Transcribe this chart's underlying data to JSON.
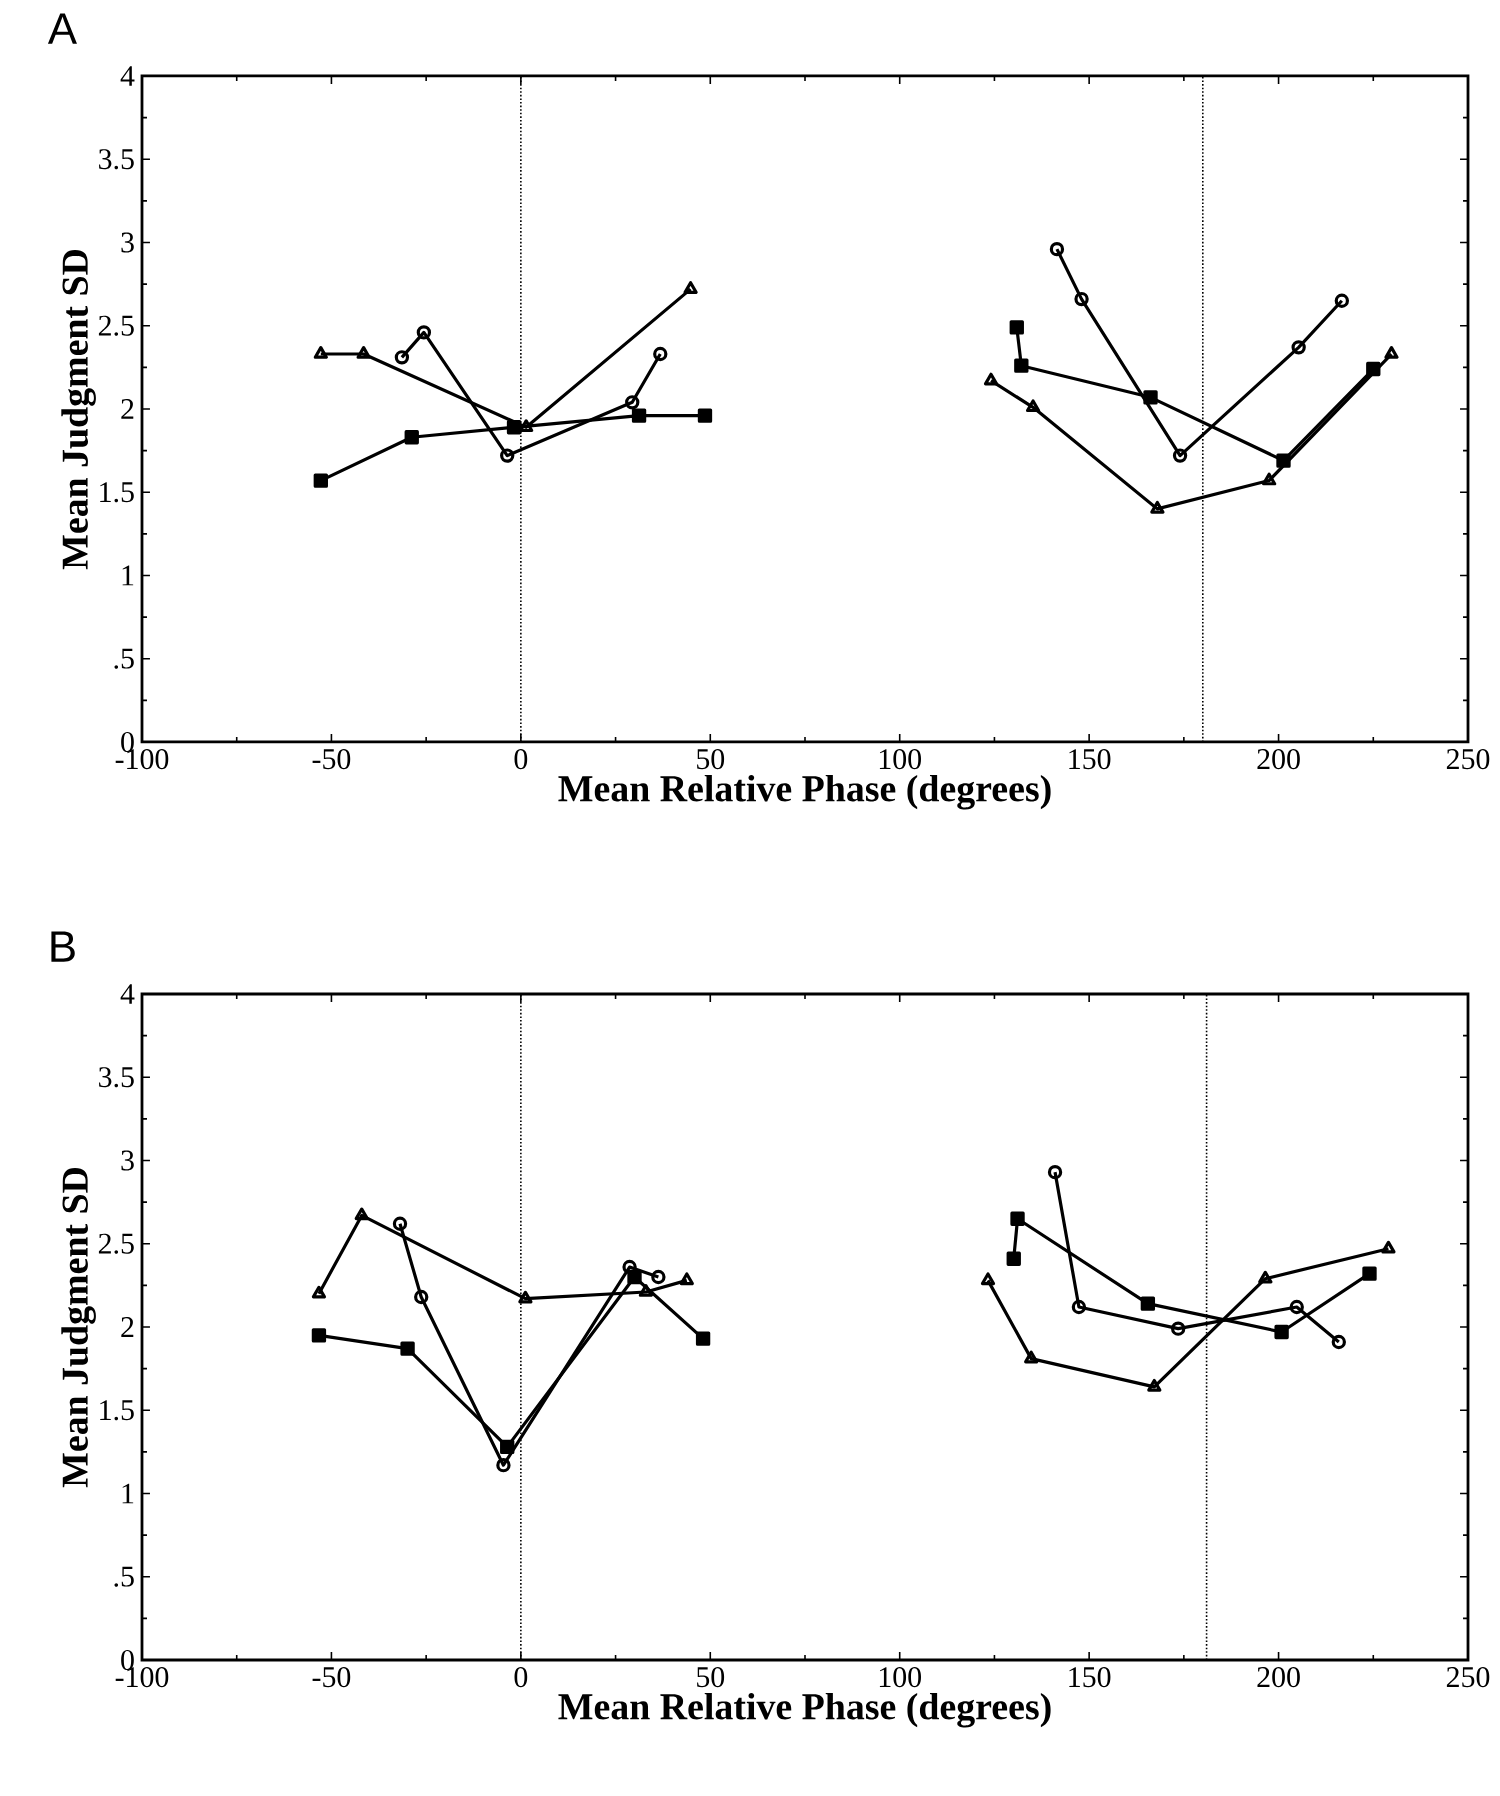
{
  "chart_data": [
    {
      "type": "line",
      "title": "A",
      "xlabel": "Mean  Relative  Phase  (degrees)",
      "ylabel": "Mean  Judgment  SD",
      "xlim": [
        -100,
        250
      ],
      "xticks": [
        -100,
        -50,
        0,
        50,
        100,
        150,
        200,
        250
      ],
      "ylim": [
        0,
        4
      ],
      "yticks": [
        0,
        {
          "value": 0.5,
          "label": ".5"
        },
        1,
        {
          "value": 1.5,
          "label": "1.5"
        },
        2,
        {
          "value": 2.5,
          "label": "2.5"
        },
        3,
        {
          "value": 3.5,
          "label": "3.5"
        },
        4
      ],
      "line_style": "solid",
      "ref_lines": [
        {
          "axis": "x",
          "value": 0,
          "color": "#000000",
          "line_style": "dotted"
        },
        {
          "axis": "x",
          "value": 180,
          "color": "#000000",
          "line_style": "dotted"
        }
      ],
      "series": [
        {
          "color": "#000000",
          "marker": "square",
          "x": [
            -52.8,
            -28.8,
            -1.8,
            31.2,
            48.6
          ],
          "values": [
            1.57,
            1.83,
            1.89,
            1.96,
            1.96
          ]
        },
        {
          "color": "#000000",
          "marker": "circle",
          "x": [
            -31.4,
            -25.6,
            -3.6,
            29.4,
            36.8
          ],
          "values": [
            2.31,
            2.46,
            1.72,
            2.04,
            2.33
          ]
        },
        {
          "color": "#000000",
          "marker": "triangle",
          "x": [
            -52.8,
            -41.5,
            1.4,
            44.8
          ],
          "values": [
            2.33,
            2.33,
            1.89,
            2.72
          ]
        },
        {
          "color": "#000000",
          "marker": "square",
          "x": [
            130.9,
            132.1,
            166.2,
            201.3,
            225.0
          ],
          "values": [
            2.49,
            2.26,
            2.07,
            1.69,
            2.24
          ]
        },
        {
          "color": "#000000",
          "marker": "circle",
          "x": [
            141.5,
            148.0,
            174.0,
            205.3,
            216.7
          ],
          "values": [
            2.96,
            2.66,
            1.72,
            2.37,
            2.65
          ]
        },
        {
          "color": "#000000",
          "marker": "triangle",
          "x": [
            124.1,
            135.2,
            168.0,
            197.5,
            229.8
          ],
          "values": [
            2.17,
            2.01,
            1.4,
            1.57,
            2.33
          ]
        }
      ]
    },
    {
      "type": "line",
      "title": "B",
      "xlabel": "Mean  Relative  Phase  (degrees)",
      "ylabel": "Mean  Judgment  SD",
      "xlim": [
        -100,
        250
      ],
      "xticks": [
        -100,
        -50,
        0,
        50,
        100,
        150,
        200,
        250
      ],
      "ylim": [
        0,
        4
      ],
      "yticks": [
        0,
        {
          "value": 0.5,
          "label": ".5"
        },
        1,
        {
          "value": 1.5,
          "label": "1.5"
        },
        2,
        {
          "value": 2.5,
          "label": "2.5"
        },
        3,
        {
          "value": 3.5,
          "label": "3.5"
        },
        4
      ],
      "line_style": "solid",
      "ref_lines": [
        {
          "axis": "x",
          "value": 0,
          "color": "#000000",
          "line_style": "dotted"
        },
        {
          "axis": "x",
          "value": 181,
          "color": "#000000",
          "line_style": "dotted"
        }
      ],
      "series": [
        {
          "color": "#000000",
          "marker": "square",
          "x": [
            -53.3,
            -29.9,
            -3.6,
            30.0,
            48.1
          ],
          "values": [
            1.95,
            1.87,
            1.28,
            2.3,
            1.93
          ]
        },
        {
          "color": "#000000",
          "marker": "circle",
          "x": [
            -31.9,
            -26.3,
            -4.6,
            28.7,
            36.3
          ],
          "values": [
            2.62,
            2.18,
            1.17,
            2.36,
            2.3
          ]
        },
        {
          "color": "#000000",
          "marker": "triangle",
          "x": [
            -53.3,
            -42.0,
            1.2,
            33.0,
            43.8
          ],
          "values": [
            2.2,
            2.67,
            2.17,
            2.21,
            2.28
          ]
        },
        {
          "color": "#000000",
          "marker": "square",
          "x": [
            130.1,
            131.1,
            165.5,
            200.8,
            224.0
          ],
          "values": [
            2.41,
            2.65,
            2.14,
            1.97,
            2.32
          ]
        },
        {
          "color": "#000000",
          "marker": "circle",
          "x": [
            141.0,
            147.3,
            173.5,
            204.8,
            215.9
          ],
          "values": [
            2.93,
            2.12,
            1.99,
            2.12,
            1.91
          ]
        },
        {
          "color": "#000000",
          "marker": "triangle",
          "x": [
            123.3,
            134.7,
            167.2,
            196.5,
            229.0
          ],
          "values": [
            2.28,
            1.81,
            1.64,
            2.29,
            2.47
          ]
        }
      ]
    }
  ]
}
